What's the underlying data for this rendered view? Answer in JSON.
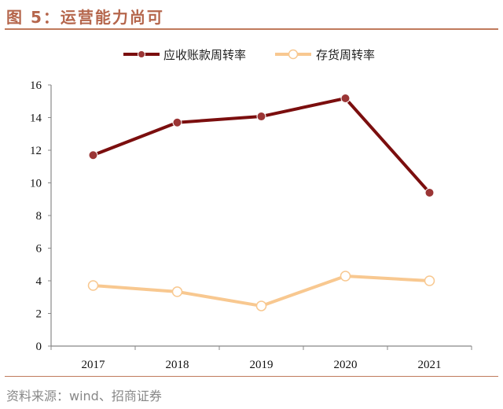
{
  "title": "图 5：运营能力尚可",
  "source": "资料来源：wind、招商证券",
  "chart_data": {
    "type": "line",
    "title": "图 5：运营能力尚可",
    "xlabel": "",
    "ylabel": "",
    "categories": [
      "2017",
      "2018",
      "2019",
      "2020",
      "2021"
    ],
    "ylim": [
      0,
      16
    ],
    "yticks": [
      0,
      2,
      4,
      6,
      8,
      10,
      12,
      14,
      16
    ],
    "grid": false,
    "legend_position": "top",
    "series": [
      {
        "name": "应收账款周转率",
        "color": "#7b0e0e",
        "marker_color": "#9b3535",
        "marker": "filled-circle",
        "values": [
          11.7,
          13.7,
          14.07,
          15.18,
          9.4
        ]
      },
      {
        "name": "存货周转率",
        "color": "#f8c890",
        "marker_color": "#ffffff",
        "marker": "hollow-circle",
        "values": [
          3.71,
          3.33,
          2.46,
          4.29,
          4.0
        ]
      }
    ]
  }
}
